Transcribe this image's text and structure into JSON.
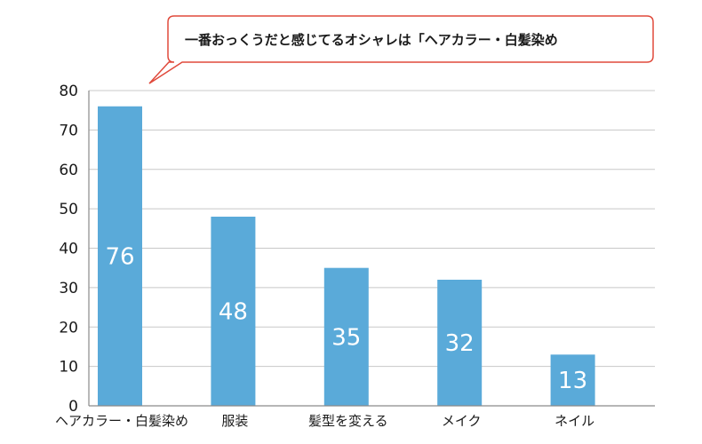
{
  "callout": {
    "text": "一番おっくうだと感じてるオシャレは「ヘアカラー・白髪染め"
  },
  "colors": {
    "bar": "#5aaad9",
    "grid": "#c8c8c8",
    "axis": "#8a8a8a",
    "callout_border": "#e04a3c"
  },
  "chart_data": {
    "type": "bar",
    "title": "",
    "xlabel": "",
    "ylabel": "",
    "categories": [
      "ヘアカラー・白髪染め",
      "服装",
      "髪型を変える",
      "メイク",
      "ネイル"
    ],
    "values": [
      76,
      48,
      35,
      32,
      13
    ],
    "ylim": [
      0,
      80
    ],
    "yticks": [
      0,
      10,
      20,
      30,
      40,
      50,
      60,
      70,
      80
    ],
    "grid": true,
    "legend": "none",
    "data_labels": true
  }
}
